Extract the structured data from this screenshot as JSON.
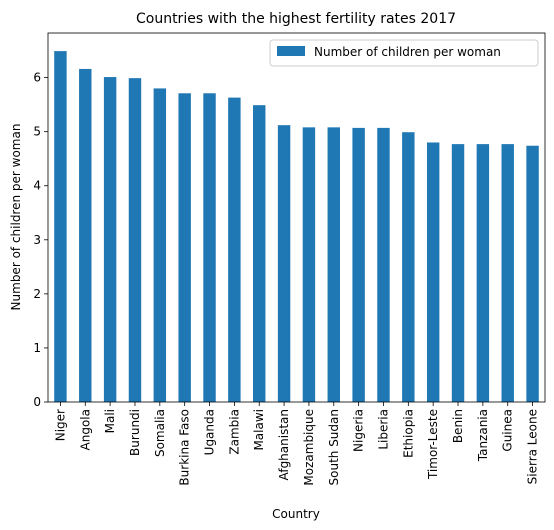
{
  "chart_data": {
    "type": "bar",
    "title": "Countries with the highest fertility rates 2017",
    "xlabel": "Country",
    "ylabel": "Number of children per woman",
    "ylim": [
      0,
      6.825
    ],
    "yticks": [
      0,
      1,
      2,
      3,
      4,
      5,
      6
    ],
    "grid": false,
    "legend_position": "top-right",
    "bar_color": "#1f77b4",
    "categories": [
      "Niger",
      "Angola",
      "Mali",
      "Burundi",
      "Somalia",
      "Burkina Faso",
      "Uganda",
      "Zambia",
      "Malawi",
      "Afghanistan",
      "Mozambique",
      "South Sudan",
      "Nigeria",
      "Liberia",
      "Ethiopia",
      "Timor-Leste",
      "Benin",
      "Tanzania",
      "Guinea",
      "Sierra Leone"
    ],
    "series": [
      {
        "name": "Number of children per woman",
        "values": [
          6.49,
          6.16,
          6.01,
          5.99,
          5.8,
          5.71,
          5.71,
          5.63,
          5.49,
          5.12,
          5.08,
          5.08,
          5.07,
          5.07,
          4.99,
          4.8,
          4.77,
          4.77,
          4.77,
          4.74
        ]
      }
    ]
  }
}
